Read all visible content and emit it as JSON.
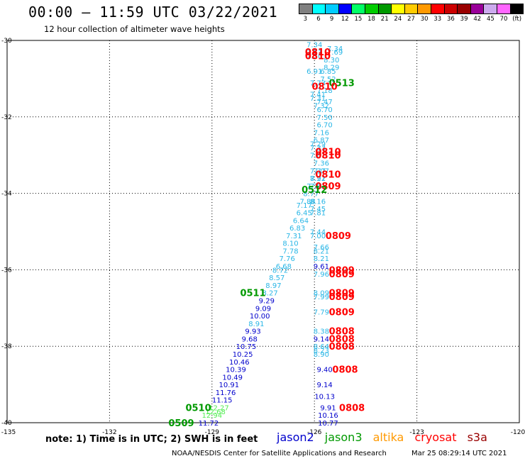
{
  "header": {
    "title": "00:00 – 11:59 UTC 03/22/2021",
    "subtitle": "12 hour collection of altimeter wave heights"
  },
  "colorbar": {
    "colors": [
      "#808080",
      "#00ffff",
      "#00ccff",
      "#0000ff",
      "#00ff66",
      "#00cc00",
      "#009900",
      "#ffff00",
      "#ffcc00",
      "#ff9900",
      "#ff0000",
      "#cc0000",
      "#990000",
      "#990099",
      "#ccaaee",
      "#ff66ff",
      "#000000"
    ],
    "labels": [
      "3",
      "6",
      "9",
      "12",
      "15",
      "18",
      "21",
      "24",
      "27",
      "30",
      "33",
      "36",
      "39",
      "42",
      "45",
      "70",
      "(ft)"
    ]
  },
  "axes": {
    "lon_ticks": [
      "-135",
      "-132",
      "-129",
      "-126",
      "-123",
      "-120"
    ],
    "lat_ticks": [
      "-30",
      "-32",
      "-34",
      "-36",
      "-38",
      "-40"
    ]
  },
  "note": "note: 1) Time is in UTC; 2) SWH is in feet",
  "legend": [
    {
      "name": "jason2",
      "color": "#0000cc"
    },
    {
      "name": "jason3",
      "color": "#009900"
    },
    {
      "name": "altika",
      "color": "#ff9900"
    },
    {
      "name": "cryosat",
      "color": "#ff0000"
    },
    {
      "name": "s3a",
      "color": "#990000"
    }
  ],
  "footer": {
    "credit": "NOAA/NESDIS Center for Satellite Applications and Research",
    "timestamp": "Mar 25 08:29:14 UTC 2021"
  },
  "map_data": {
    "lon_range": [
      -135,
      -120
    ],
    "lat_range": [
      -40,
      -30
    ],
    "grid": true,
    "track_0513": [
      {
        "lon": -126.0,
        "lat": -30.1,
        "v": "7.34"
      },
      {
        "lon": -126.0,
        "lat": -30.3,
        "v": "7.51"
      },
      {
        "lon": -126.0,
        "lat": -30.4,
        "v": "7.30"
      },
      {
        "lon": -126.0,
        "lat": -30.8,
        "v": "6.91"
      },
      {
        "lon": -125.9,
        "lat": -31.1,
        "v": "7.73"
      },
      {
        "lon": -125.9,
        "lat": -31.4,
        "v": "7.41"
      },
      {
        "lon": -125.9,
        "lat": -31.5,
        "v": "7.31"
      },
      {
        "lon": -125.8,
        "lat": -31.7,
        "v": "7.32"
      },
      {
        "lon": -125.7,
        "lat": -31.8,
        "v": "6.70"
      },
      {
        "lon": -125.7,
        "lat": -32.0,
        "v": "7.50"
      },
      {
        "lon": -125.7,
        "lat": -32.2,
        "v": "6.70"
      },
      {
        "lon": -125.8,
        "lat": -32.4,
        "v": "7.16"
      },
      {
        "lon": -125.8,
        "lat": -32.6,
        "v": "6.87"
      },
      {
        "lon": -125.9,
        "lat": -32.7,
        "v": "7.29"
      },
      {
        "lon": -125.9,
        "lat": -32.8,
        "v": "7.33"
      },
      {
        "lon": -125.9,
        "lat": -33.0,
        "v": "7.61"
      },
      {
        "lon": -125.8,
        "lat": -33.2,
        "v": "7.36"
      },
      {
        "lon": -125.8,
        "lat": -33.4,
        "v": "7.07"
      },
      {
        "lon": -125.9,
        "lat": -33.6,
        "v": "7.91"
      },
      {
        "lon": -126.0,
        "lat": -33.8,
        "v": "7.74"
      },
      {
        "lon": -126.1,
        "lat": -34.0,
        "v": "8.77"
      },
      {
        "lon": -126.2,
        "lat": -34.2,
        "v": "7.88"
      },
      {
        "lon": -126.3,
        "lat": -34.3,
        "v": "7.17"
      },
      {
        "lon": -126.3,
        "lat": -34.5,
        "v": "6.45"
      },
      {
        "lon": -126.4,
        "lat": -34.7,
        "v": "6.64"
      },
      {
        "lon": -126.5,
        "lat": -34.9,
        "v": "6.83"
      },
      {
        "lon": -126.6,
        "lat": -35.1,
        "v": "7.31"
      },
      {
        "lon": -126.7,
        "lat": -35.3,
        "v": "8.10"
      },
      {
        "lon": -126.7,
        "lat": -35.5,
        "v": "7.78"
      },
      {
        "lon": -126.8,
        "lat": -35.7,
        "v": "7.76"
      },
      {
        "lon": -126.9,
        "lat": -35.9,
        "v": "6.68"
      },
      {
        "lon": -127.0,
        "lat": -36.0,
        "v": "8.72"
      },
      {
        "lon": -127.1,
        "lat": -36.2,
        "v": "8.57"
      },
      {
        "lon": -127.2,
        "lat": -36.4,
        "v": "8.97"
      },
      {
        "lon": -127.3,
        "lat": -36.6,
        "v": "8.27"
      },
      {
        "lon": -127.4,
        "lat": -36.8,
        "v": "9.29"
      },
      {
        "lon": -127.5,
        "lat": -37.0,
        "v": "9.09"
      },
      {
        "lon": -127.6,
        "lat": -37.2,
        "v": "10.00"
      },
      {
        "lon": -127.7,
        "lat": -37.4,
        "v": "8.91"
      },
      {
        "lon": -127.8,
        "lat": -37.6,
        "v": "9.93"
      },
      {
        "lon": -127.9,
        "lat": -37.8,
        "v": "9.68"
      },
      {
        "lon": -128.0,
        "lat": -38.0,
        "v": "10.75"
      },
      {
        "lon": -128.1,
        "lat": -38.2,
        "v": "10.25"
      },
      {
        "lon": -128.2,
        "lat": -38.4,
        "v": "10.46"
      },
      {
        "lon": -128.3,
        "lat": -38.6,
        "v": "10.39"
      },
      {
        "lon": -128.4,
        "lat": -38.8,
        "v": "10.49"
      },
      {
        "lon": -128.5,
        "lat": -39.0,
        "v": "10.91"
      },
      {
        "lon": -128.6,
        "lat": -39.2,
        "v": "11.76"
      },
      {
        "lon": -128.7,
        "lat": -39.4,
        "v": "11.15"
      },
      {
        "lon": -128.8,
        "lat": -39.6,
        "v": "12.27"
      },
      {
        "lon": -128.9,
        "lat": -39.7,
        "v": "12.68"
      },
      {
        "lon": -129.0,
        "lat": -39.8,
        "v": "12.94"
      },
      {
        "lon": -129.1,
        "lat": -40.0,
        "v": "11.72"
      }
    ],
    "track_0810": [
      {
        "lon": -125.4,
        "lat": -30.2,
        "v": "7.34"
      },
      {
        "lon": -125.4,
        "lat": -30.3,
        "v": "7.69"
      },
      {
        "lon": -125.5,
        "lat": -30.5,
        "v": "8.30"
      },
      {
        "lon": -125.5,
        "lat": -30.7,
        "v": "8.29"
      },
      {
        "lon": -125.6,
        "lat": -30.8,
        "v": "6.85"
      },
      {
        "lon": -125.6,
        "lat": -31.0,
        "v": "7.52"
      },
      {
        "lon": -125.7,
        "lat": -31.3,
        "v": "7.18"
      },
      {
        "lon": -125.7,
        "lat": -31.6,
        "v": "7.47"
      },
      {
        "lon": -125.9,
        "lat": -33.4,
        "v": "7.77"
      },
      {
        "lon": -125.9,
        "lat": -33.6,
        "v": "8.22"
      },
      {
        "lon": -125.9,
        "lat": -33.8,
        "v": "7.01"
      },
      {
        "lon": -125.9,
        "lat": -34.2,
        "v": "8.16"
      },
      {
        "lon": -125.9,
        "lat": -34.4,
        "v": "7.45"
      },
      {
        "lon": -125.9,
        "lat": -34.5,
        "v": "7.81"
      },
      {
        "lon": -125.9,
        "lat": -35.0,
        "v": "7.44"
      },
      {
        "lon": -125.9,
        "lat": -35.1,
        "v": "7.00"
      },
      {
        "lon": -125.8,
        "lat": -35.4,
        "v": "7.66"
      },
      {
        "lon": -125.8,
        "lat": -35.5,
        "v": "8.21"
      },
      {
        "lon": -125.8,
        "lat": -35.7,
        "v": "8.21"
      },
      {
        "lon": -125.8,
        "lat": -35.9,
        "v": "9.61"
      },
      {
        "lon": -125.8,
        "lat": -36.1,
        "v": "7.96"
      },
      {
        "lon": -125.8,
        "lat": -36.6,
        "v": "8.09"
      },
      {
        "lon": -125.8,
        "lat": -36.7,
        "v": "7.99"
      },
      {
        "lon": -125.8,
        "lat": -37.1,
        "v": "7.79"
      },
      {
        "lon": -125.8,
        "lat": -37.6,
        "v": "8.38"
      },
      {
        "lon": -125.8,
        "lat": -37.8,
        "v": "9.14"
      },
      {
        "lon": -125.8,
        "lat": -38.0,
        "v": "8.64"
      },
      {
        "lon": -125.8,
        "lat": -38.1,
        "v": "8.23"
      },
      {
        "lon": -125.8,
        "lat": -38.2,
        "v": "8.90"
      },
      {
        "lon": -125.7,
        "lat": -38.6,
        "v": "9.40"
      },
      {
        "lon": -125.7,
        "lat": -39.0,
        "v": "9.14"
      },
      {
        "lon": -125.7,
        "lat": -39.3,
        "v": "10.13"
      },
      {
        "lon": -125.6,
        "lat": -39.6,
        "v": "9.91"
      },
      {
        "lon": -125.6,
        "lat": -39.8,
        "v": "10.16"
      },
      {
        "lon": -125.6,
        "lat": -40.0,
        "v": "10.77"
      }
    ],
    "pass_labels": [
      {
        "lon": -125.9,
        "lat": -30.3,
        "text": "0810",
        "mission": "cryosat"
      },
      {
        "lon": -125.9,
        "lat": -30.4,
        "text": "0810",
        "mission": "cryosat"
      },
      {
        "lon": -125.2,
        "lat": -31.1,
        "text": "0513",
        "mission": "jason3"
      },
      {
        "lon": -125.7,
        "lat": -31.2,
        "text": "0810",
        "mission": "cryosat"
      },
      {
        "lon": -125.6,
        "lat": -32.9,
        "text": "0810",
        "mission": "cryosat"
      },
      {
        "lon": -125.6,
        "lat": -33.0,
        "text": "0810",
        "mission": "cryosat"
      },
      {
        "lon": -125.6,
        "lat": -33.5,
        "text": "0810",
        "mission": "cryosat"
      },
      {
        "lon": -125.6,
        "lat": -33.8,
        "text": "0809",
        "mission": "cryosat"
      },
      {
        "lon": -126.0,
        "lat": -33.9,
        "text": "0512",
        "mission": "jason3"
      },
      {
        "lon": -125.3,
        "lat": -35.1,
        "text": "0809",
        "mission": "cryosat"
      },
      {
        "lon": -125.2,
        "lat": -36.0,
        "text": "0809",
        "mission": "cryosat"
      },
      {
        "lon": -125.2,
        "lat": -36.1,
        "text": "0809",
        "mission": "cryosat"
      },
      {
        "lon": -125.2,
        "lat": -36.6,
        "text": "0809",
        "mission": "cryosat"
      },
      {
        "lon": -125.2,
        "lat": -36.7,
        "text": "0809",
        "mission": "cryosat"
      },
      {
        "lon": -125.2,
        "lat": -37.1,
        "text": "0809",
        "mission": "cryosat"
      },
      {
        "lon": -125.2,
        "lat": -37.6,
        "text": "0808",
        "mission": "cryosat"
      },
      {
        "lon": -125.2,
        "lat": -37.8,
        "text": "0808",
        "mission": "cryosat"
      },
      {
        "lon": -125.2,
        "lat": -38.0,
        "text": "0808",
        "mission": "cryosat"
      },
      {
        "lon": -125.1,
        "lat": -38.6,
        "text": "0808",
        "mission": "cryosat"
      },
      {
        "lon": -124.9,
        "lat": -39.6,
        "text": "0808",
        "mission": "cryosat"
      },
      {
        "lon": -127.8,
        "lat": -36.6,
        "text": "0511",
        "mission": "jason3"
      },
      {
        "lon": -129.4,
        "lat": -39.6,
        "text": "0510",
        "mission": "jason3"
      },
      {
        "lon": -129.9,
        "lat": -40.0,
        "text": "0509",
        "mission": "jason3"
      }
    ]
  }
}
